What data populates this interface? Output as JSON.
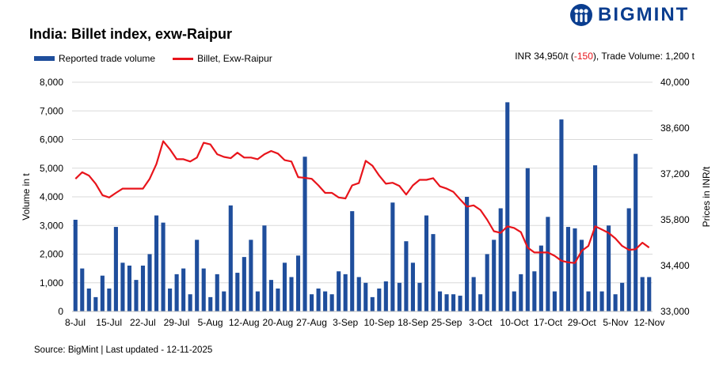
{
  "brand": {
    "name": "BIGMINT",
    "colors": {
      "brand": "#0a3d8f"
    }
  },
  "title": "India: Billet index, exw-Raipur",
  "summary": {
    "prefix": "INR 34,950/t (",
    "change": "-150",
    "suffix": "), Trade Volume: 1,200 t"
  },
  "source": "Source: BigMint | Last updated - 12-11-2025",
  "chart_data": {
    "type": "bar",
    "title": "India: Billet index, exw-Raipur",
    "ylabel": "Volume in t",
    "y2label": "Prices in INR/t",
    "xlabel": "",
    "ylim": [
      0,
      8000
    ],
    "y2lim": [
      33000,
      40000
    ],
    "yticks": [
      "0",
      "1,000",
      "2,000",
      "3,000",
      "4,000",
      "5,000",
      "6,000",
      "7,000",
      "8,000"
    ],
    "y2ticks": [
      "33,000",
      "34,400",
      "35,800",
      "37,200",
      "38,600",
      "40,000"
    ],
    "x_tick_labels": [
      "8-Jul",
      "15-Jul",
      "22-Jul",
      "29-Jul",
      "5-Aug",
      "12-Aug",
      "20-Aug",
      "27-Aug",
      "3-Sep",
      "10-Sep",
      "18-Sep",
      "25-Sep",
      "3-Oct",
      "10-Oct",
      "17-Oct",
      "29-Oct",
      "5-Nov",
      "12-Nov"
    ],
    "grid": "horizontal",
    "legend_position": "top-left",
    "series": [
      {
        "name": "Reported trade volume",
        "kind": "bar",
        "color": "#1f4e9c",
        "values": [
          3200,
          1500,
          800,
          500,
          1250,
          800,
          2950,
          1700,
          1600,
          1100,
          1600,
          2000,
          3350,
          3100,
          800,
          1300,
          1500,
          600,
          2500,
          1500,
          500,
          1300,
          700,
          3700,
          1350,
          1900,
          2500,
          700,
          3000,
          1100,
          800,
          1700,
          1200,
          1950,
          5400,
          600,
          800,
          700,
          600,
          1400,
          1300,
          3500,
          1200,
          1000,
          500,
          800,
          1050,
          3800,
          1000,
          2450,
          1700,
          1000,
          3350,
          2700,
          700,
          600,
          600,
          550,
          4000,
          1200,
          600,
          2000,
          2500,
          3600,
          7300,
          700,
          1300,
          5000,
          1400,
          2300,
          3300,
          700,
          6700,
          2950,
          2900,
          2500,
          700,
          5100,
          700,
          3000,
          600,
          1000,
          3600,
          5500,
          1200,
          1200
        ]
      },
      {
        "name": "Billet, Exw-Raipur",
        "kind": "line",
        "color": "#e8141b",
        "values": [
          37050,
          37250,
          37150,
          36900,
          36550,
          36480,
          36620,
          36750,
          36750,
          36750,
          36750,
          37050,
          37500,
          38200,
          37950,
          37650,
          37650,
          37580,
          37700,
          38150,
          38100,
          37800,
          37720,
          37680,
          37850,
          37700,
          37700,
          37650,
          37800,
          37900,
          37820,
          37620,
          37580,
          37100,
          37080,
          37050,
          36850,
          36620,
          36620,
          36480,
          36450,
          36850,
          36920,
          37600,
          37450,
          37150,
          36900,
          36930,
          36830,
          36570,
          36850,
          37020,
          37020,
          37070,
          36820,
          36750,
          36650,
          36420,
          36200,
          36240,
          36100,
          35800,
          35450,
          35400,
          35600,
          35550,
          35420,
          34950,
          34800,
          34800,
          34800,
          34700,
          34550,
          34500,
          34480,
          34850,
          35000,
          35600,
          35500,
          35400,
          35230,
          35000,
          34880,
          34900,
          35100,
          34950
        ]
      }
    ]
  }
}
